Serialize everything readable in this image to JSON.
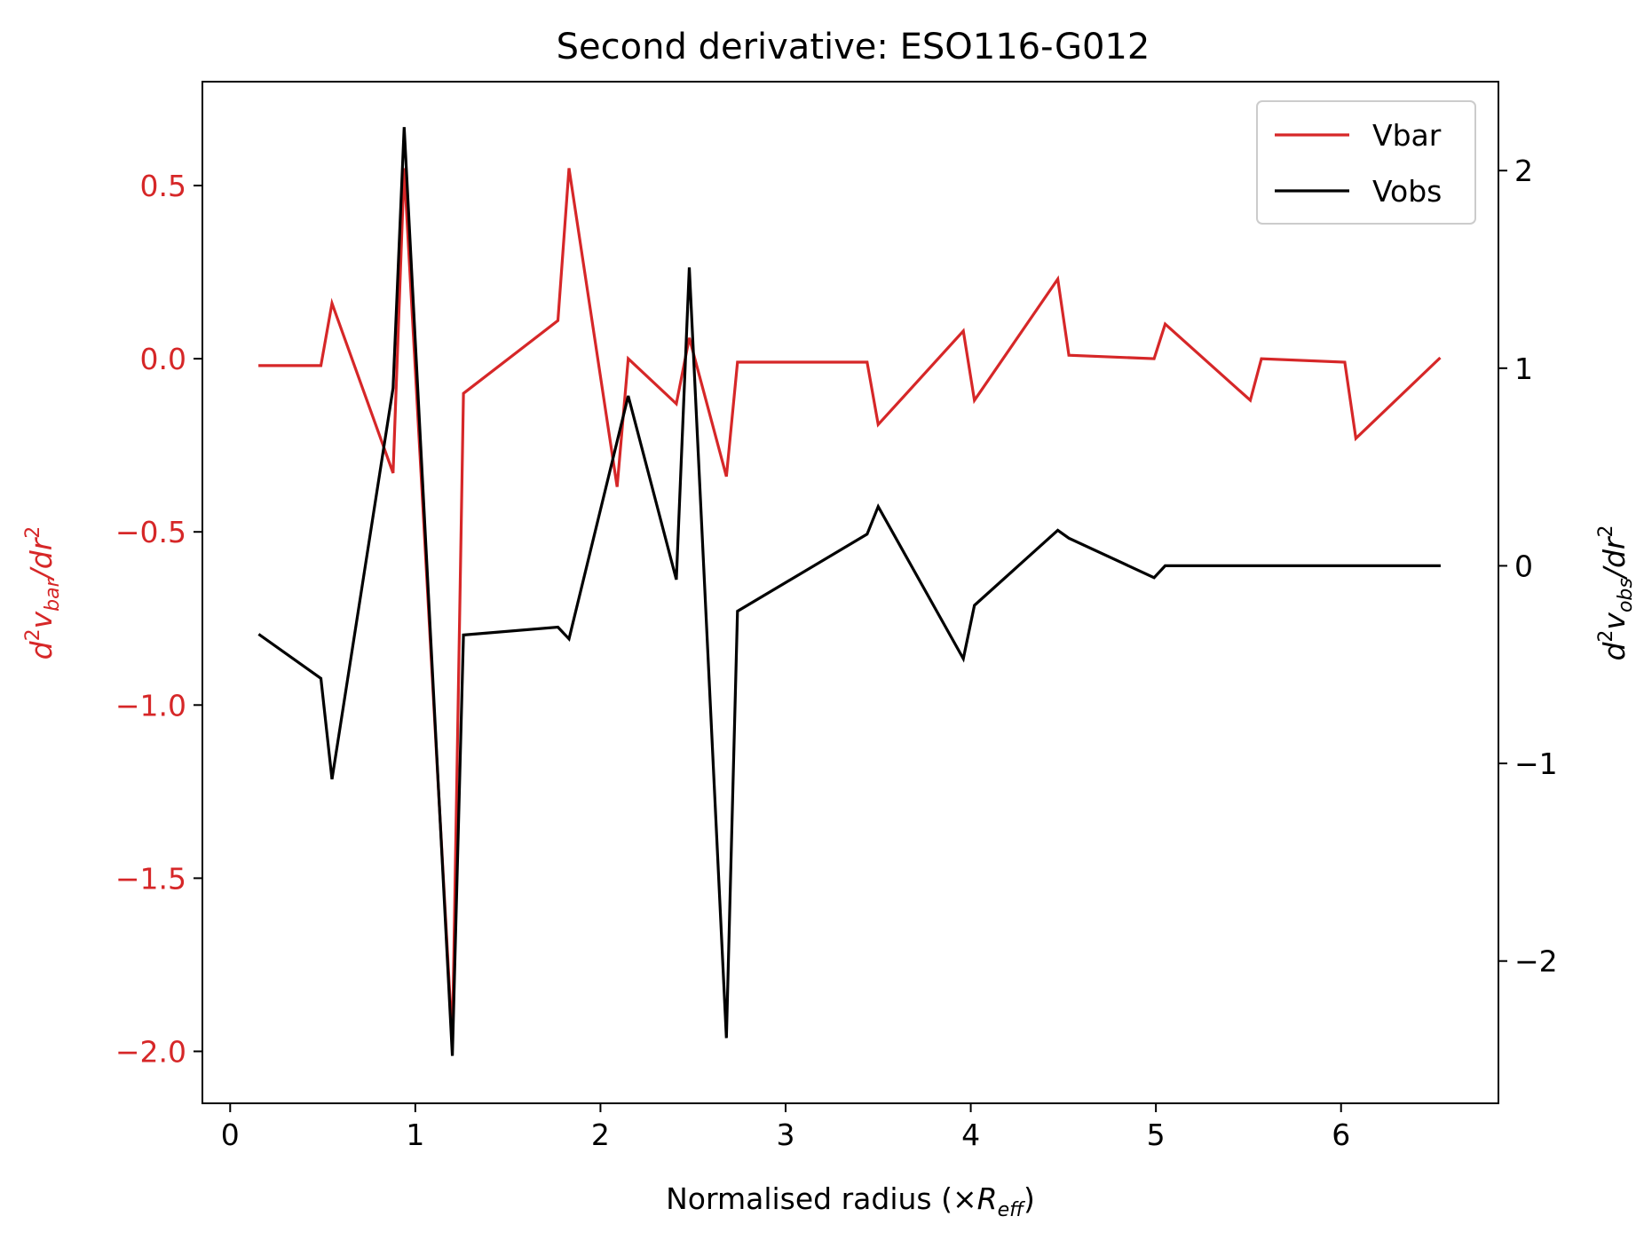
{
  "chart_data": {
    "type": "line",
    "title": "Second derivative: ESO116-G012",
    "xlabel": {
      "prefix": "Normalised radius (×",
      "var": "R",
      "sub": "eff",
      "suffix": ")"
    },
    "ylabel_left": {
      "var": "d",
      "sup": "2",
      "var2": "v",
      "sub": "bar",
      "tail": "/dr",
      "sup2": "2"
    },
    "ylabel_right": {
      "var": "d",
      "sup": "2",
      "var2": "v",
      "sub": "obs",
      "tail": "/dr",
      "sup2": "2"
    },
    "xlim": [
      -0.15,
      6.85
    ],
    "ylim_left": [
      -2.15,
      0.8
    ],
    "ylim_right": [
      -2.72,
      2.45
    ],
    "x_ticks": [
      0,
      1,
      2,
      3,
      4,
      5,
      6
    ],
    "x_tick_labels": [
      "0",
      "1",
      "2",
      "3",
      "4",
      "5",
      "6"
    ],
    "y_left_ticks": [
      0.5,
      0.0,
      -0.5,
      -1.0,
      -1.5,
      -2.0
    ],
    "y_left_tick_labels": [
      "0.5",
      "0.0",
      "−0.5",
      "−1.0",
      "−1.5",
      "−2.0"
    ],
    "y_right_ticks": [
      2,
      1,
      0,
      -1,
      -2
    ],
    "y_right_tick_labels": [
      "2",
      "1",
      "0",
      "−1",
      "−2"
    ],
    "legend_position": "top-right",
    "grid": false,
    "colors": {
      "vbar": "#d62728",
      "vobs": "#000000",
      "left_axis": "#d62728"
    },
    "series": [
      {
        "name": "Vbar",
        "axis": "left",
        "color": "#d62728",
        "x": [
          0.16,
          0.49,
          0.55,
          0.88,
          0.94,
          1.2,
          1.26,
          1.77,
          1.83,
          2.09,
          2.15,
          2.41,
          2.48,
          2.68,
          2.74,
          3.44,
          3.5,
          3.96,
          4.02,
          4.47,
          4.53,
          4.99,
          5.05,
          5.51,
          5.57,
          6.02,
          6.08,
          6.53
        ],
        "values": [
          -0.02,
          -0.02,
          0.16,
          -0.33,
          0.55,
          -1.97,
          -0.1,
          0.11,
          0.55,
          -0.37,
          0.0,
          -0.13,
          0.06,
          -0.34,
          -0.01,
          -0.01,
          -0.19,
          0.08,
          -0.12,
          0.23,
          0.01,
          0.0,
          0.1,
          -0.12,
          0.0,
          -0.01,
          -0.23,
          0.0
        ]
      },
      {
        "name": "Vobs",
        "axis": "right",
        "color": "#000000",
        "x": [
          0.16,
          0.49,
          0.55,
          0.88,
          0.94,
          1.2,
          1.26,
          1.77,
          1.83,
          2.15,
          2.41,
          2.48,
          2.68,
          2.74,
          3.44,
          3.5,
          3.96,
          4.02,
          4.47,
          4.53,
          4.99,
          5.05,
          5.51,
          5.57,
          6.02,
          6.08,
          6.53
        ],
        "values": [
          -0.35,
          -0.57,
          -1.08,
          0.9,
          2.22,
          -2.48,
          -0.35,
          -0.31,
          -0.37,
          0.86,
          -0.07,
          1.51,
          -2.39,
          -0.23,
          0.16,
          0.3,
          -0.47,
          -0.2,
          0.18,
          0.14,
          -0.06,
          0.0,
          0.0,
          0.0,
          0.0,
          0.0,
          0.0
        ]
      }
    ]
  }
}
